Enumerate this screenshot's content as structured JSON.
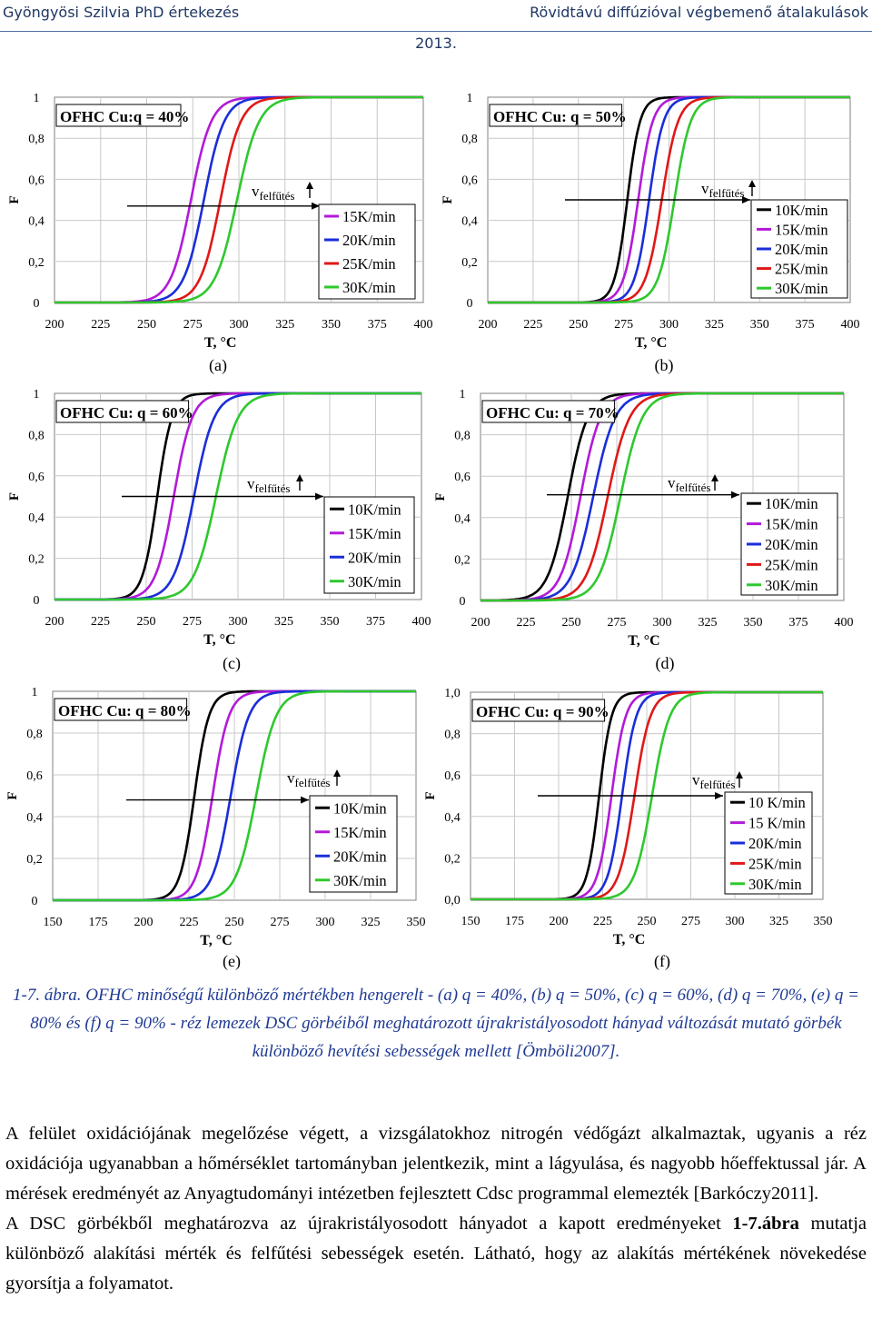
{
  "header": {
    "left": "Gyöngyösi Szilvia PhD értekezés",
    "right": "Rövidtávú diffúzióval végbemenő átalakulások",
    "year": "2013."
  },
  "colors": {
    "10K/min": "#000000",
    "10 K/min": "#000000",
    "15K/min": "#b21ad8",
    "15 K/min": "#b21ad8",
    "20K/min": "#1a2ed8",
    "25K/min": "#e01818",
    "30K/min": "#2ec82e"
  },
  "figure": {
    "chart_data": [
      {
        "type": "line",
        "panel_label": "(a)",
        "title": "OFHC Cu:q = 40%",
        "xlabel": "T, °C",
        "ylabel": "F",
        "xlim": [
          200,
          400
        ],
        "ylim": [
          0,
          1
        ],
        "x_ticks": [
          "200",
          "225",
          "250",
          "275",
          "300",
          "325",
          "350",
          "375",
          "400"
        ],
        "y_ticks": [
          "0",
          "0,2",
          "0,4",
          "0,6",
          "0,8",
          "1"
        ],
        "grid": true,
        "legend_position": "bottom-right",
        "arrow_label": "v",
        "arrow_sub": "felfűtés",
        "series": [
          {
            "name": "15K/min",
            "midpoint": 274,
            "width": 5.5
          },
          {
            "name": "20K/min",
            "midpoint": 281,
            "width": 5.5
          },
          {
            "name": "25K/min",
            "midpoint": 290,
            "width": 5.5
          },
          {
            "name": "30K/min",
            "midpoint": 299,
            "width": 6.0
          }
        ]
      },
      {
        "type": "line",
        "panel_label": "(b)",
        "title": "OFHC Cu: q = 50%",
        "xlabel": "T, °C",
        "ylabel": "F",
        "xlim": [
          200,
          400
        ],
        "ylim": [
          0,
          1
        ],
        "x_ticks": [
          "200",
          "225",
          "250",
          "275",
          "300",
          "325",
          "350",
          "375",
          "400"
        ],
        "y_ticks": [
          "0",
          "0,2",
          "0,4",
          "0,6",
          "0,8",
          "1"
        ],
        "grid": true,
        "legend_position": "bottom-right",
        "arrow_label": "v",
        "arrow_sub": "felfűtés",
        "series": [
          {
            "name": "10K/min",
            "midpoint": 277,
            "width": 3.5
          },
          {
            "name": "15K/min",
            "midpoint": 283,
            "width": 4.0
          },
          {
            "name": "20K/min",
            "midpoint": 289,
            "width": 4.0
          },
          {
            "name": "25K/min",
            "midpoint": 296,
            "width": 4.5
          },
          {
            "name": "30K/min",
            "midpoint": 303,
            "width": 4.5
          }
        ]
      },
      {
        "type": "line",
        "panel_label": "(c)",
        "title": "OFHC Cu: q = 60%",
        "xlabel": "T, °C",
        "ylabel": "F",
        "xlim": [
          200,
          400
        ],
        "ylim": [
          0,
          1
        ],
        "x_ticks": [
          "200",
          "225",
          "250",
          "275",
          "300",
          "325",
          "350",
          "375",
          "400"
        ],
        "y_ticks": [
          "0",
          "0,2",
          "0,4",
          "0,6",
          "0,8",
          "1"
        ],
        "grid": true,
        "legend_position": "bottom-right",
        "arrow_label": "v",
        "arrow_sub": "felfűtés",
        "series": [
          {
            "name": "10K/min",
            "midpoint": 256,
            "width": 4.0
          },
          {
            "name": "15K/min",
            "midpoint": 265,
            "width": 5.0
          },
          {
            "name": "20K/min",
            "midpoint": 276,
            "width": 5.5
          },
          {
            "name": "30K/min",
            "midpoint": 288,
            "width": 6.0
          }
        ]
      },
      {
        "type": "line",
        "panel_label": "(d)",
        "title": "OFHC Cu: q = 70%",
        "xlabel": "T, °C",
        "ylabel": "F",
        "xlim": [
          200,
          400
        ],
        "ylim": [
          0,
          1
        ],
        "x_ticks": [
          "200",
          "225",
          "250",
          "275",
          "300",
          "325",
          "350",
          "375",
          "400"
        ],
        "y_ticks": [
          "0",
          "0,2",
          "0,4",
          "0,6",
          "0,8",
          "1"
        ],
        "grid": true,
        "legend_position": "bottom-right",
        "arrow_label": "v",
        "arrow_sub": "felfűtés",
        "series": [
          {
            "name": "10K/min",
            "midpoint": 248,
            "width": 5.5
          },
          {
            "name": "15K/min",
            "midpoint": 255,
            "width": 5.5
          },
          {
            "name": "20K/min",
            "midpoint": 262,
            "width": 6.0
          },
          {
            "name": "25K/min",
            "midpoint": 270,
            "width": 6.0
          },
          {
            "name": "30K/min",
            "midpoint": 277,
            "width": 6.0
          }
        ]
      },
      {
        "type": "line",
        "panel_label": "(e)",
        "title": "OFHC Cu: q = 80%",
        "xlabel": "T, °C",
        "ylabel": "F",
        "xlim": [
          150,
          350
        ],
        "ylim": [
          0,
          1
        ],
        "x_ticks": [
          "150",
          "175",
          "200",
          "225",
          "250",
          "275",
          "300",
          "325",
          "350"
        ],
        "y_ticks": [
          "0",
          "0,2",
          "0,4",
          "0,6",
          "0,8",
          "1"
        ],
        "grid": true,
        "legend_position": "bottom-right",
        "arrow_label": "v",
        "arrow_sub": "felfűtés",
        "series": [
          {
            "name": "10K/min",
            "midpoint": 228,
            "width": 4.0
          },
          {
            "name": "15K/min",
            "midpoint": 238,
            "width": 4.5
          },
          {
            "name": "20K/min",
            "midpoint": 248,
            "width": 5.0
          },
          {
            "name": "30K/min",
            "midpoint": 262,
            "width": 5.5
          }
        ]
      },
      {
        "type": "line",
        "panel_label": "(f)",
        "title": "OFHC Cu: q = 90%",
        "xlabel": "T, °C",
        "ylabel": "F",
        "xlim": [
          150,
          350
        ],
        "ylim": [
          0,
          1
        ],
        "x_ticks": [
          "150",
          "175",
          "200",
          "225",
          "250",
          "275",
          "300",
          "325",
          "350"
        ],
        "y_ticks": [
          "0,0",
          "0,2",
          "0,4",
          "0,6",
          "0,8",
          "1,0"
        ],
        "grid": true,
        "legend_position": "bottom-right",
        "arrow_label": "v",
        "arrow_sub": "felfűtés",
        "series": [
          {
            "name": "10 K/min",
            "midpoint": 223,
            "width": 3.5
          },
          {
            "name": "15 K/min",
            "midpoint": 230,
            "width": 4.0
          },
          {
            "name": "20K/min",
            "midpoint": 236,
            "width": 4.0
          },
          {
            "name": "25K/min",
            "midpoint": 243,
            "width": 4.5
          },
          {
            "name": "30K/min",
            "midpoint": 253,
            "width": 5.0
          }
        ]
      }
    ]
  },
  "caption": {
    "prefix": "1-7. ábra.",
    "text": "OFHC minőségű különböző mértékben hengerelt - (a) q = 40%, (b) q = 50%, (c) q = 60%, (d) q = 70%, (e) q = 80% és (f) q = 90% - réz lemezek DSC görbéiből meghatározott újrakristályosodott hányad változását mutató görbék különböző hevítési sebességek mellett [Ömböli2007]."
  },
  "body": {
    "p1": "A felület oxidációjának megelőzése végett, a vizsgálatokhoz nitrogén védőgázt alkalmaztak, ugyanis a réz oxidációja ugyanabban a hőmérséklet tartományban jelentkezik, mint a lágyulása, és nagyobb hőeffektussal jár. A mérések eredményét az Anyagtudományi intézetben fejlesztett Cdsc programmal elemezték [Barkóczy2011].",
    "p2_a": "A DSC görbékből meghatározva az újrakristályosodott hányadot a kapott eredményeket ",
    "p2_ref": "1-7.ábra",
    "p2_b": " mutatja különböző alakítási mérték és felfűtési sebességek esetén. Látható, hogy az alakítás mértékének növekedése gyorsítja a folyamatot."
  }
}
